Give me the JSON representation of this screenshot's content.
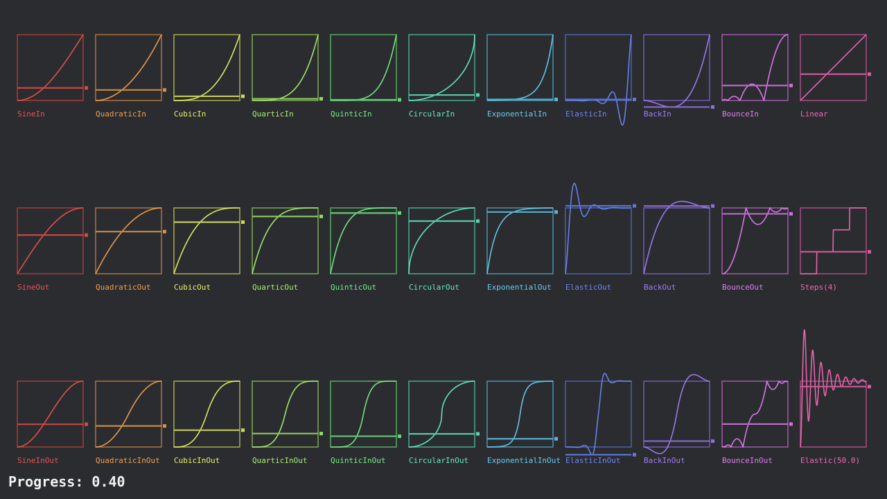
{
  "progress_text": "Progress: 0.40",
  "progress_value": 0.4,
  "rows": [
    {
      "cells": [
        {
          "label": "SineIn",
          "easing": "SineIn",
          "color": "#e8534f"
        },
        {
          "label": "QuadraticIn",
          "easing": "QuadraticIn",
          "color": "#f0a050"
        },
        {
          "label": "CubicIn",
          "easing": "CubicIn",
          "color": "#e6f06a"
        },
        {
          "label": "QuarticIn",
          "easing": "QuarticIn",
          "color": "#a8f070"
        },
        {
          "label": "QuinticIn",
          "easing": "QuinticIn",
          "color": "#74ee86"
        },
        {
          "label": "CircularIn",
          "easing": "CircularIn",
          "color": "#66ecc6"
        },
        {
          "label": "ExponentialIn",
          "easing": "ExponentialIn",
          "color": "#66ccf0"
        },
        {
          "label": "ElasticIn",
          "easing": "ElasticIn",
          "color": "#6a86f4"
        },
        {
          "label": "BackIn",
          "easing": "BackIn",
          "color": "#a07cf6"
        },
        {
          "label": "BounceIn",
          "easing": "BounceIn",
          "color": "#e07cf0"
        },
        {
          "label": "Linear",
          "easing": "Linear",
          "color": "#f068b4"
        }
      ]
    },
    {
      "cells": [
        {
          "label": "SineOut",
          "easing": "SineOut",
          "color": "#e8534f"
        },
        {
          "label": "QuadraticOut",
          "easing": "QuadraticOut",
          "color": "#f0a050"
        },
        {
          "label": "CubicOut",
          "easing": "CubicOut",
          "color": "#e6f06a"
        },
        {
          "label": "QuarticOut",
          "easing": "QuarticOut",
          "color": "#a8f070"
        },
        {
          "label": "QuinticOut",
          "easing": "QuinticOut",
          "color": "#74ee86"
        },
        {
          "label": "CircularOut",
          "easing": "CircularOut",
          "color": "#66ecc6"
        },
        {
          "label": "ExponentialOut",
          "easing": "ExponentialOut",
          "color": "#66ccf0"
        },
        {
          "label": "ElasticOut",
          "easing": "ElasticOut",
          "color": "#6a86f4"
        },
        {
          "label": "BackOut",
          "easing": "BackOut",
          "color": "#a07cf6"
        },
        {
          "label": "BounceOut",
          "easing": "BounceOut",
          "color": "#e07cf0"
        },
        {
          "label": "Steps(4)",
          "easing": "Steps",
          "steps": 4,
          "color": "#f068b4"
        }
      ]
    },
    {
      "cells": [
        {
          "label": "SineInOut",
          "easing": "SineInOut",
          "color": "#e8534f"
        },
        {
          "label": "QuadraticInOut",
          "easing": "QuadraticInOut",
          "color": "#f0a050"
        },
        {
          "label": "CubicInOut",
          "easing": "CubicInOut",
          "color": "#e6f06a"
        },
        {
          "label": "QuarticInOut",
          "easing": "QuarticInOut",
          "color": "#a8f070"
        },
        {
          "label": "QuinticInOut",
          "easing": "QuinticInOut",
          "color": "#74ee86"
        },
        {
          "label": "CircularInOut",
          "easing": "CircularInOut",
          "color": "#66ecc6"
        },
        {
          "label": "ExponentialInOut",
          "easing": "ExponentialInOut",
          "color": "#66ccf0"
        },
        {
          "label": "ElasticInOut",
          "easing": "ElasticInOut",
          "color": "#6a86f4"
        },
        {
          "label": "BackInOut",
          "easing": "BackInOut",
          "color": "#a07cf6"
        },
        {
          "label": "BounceInOut",
          "easing": "BounceInOut",
          "color": "#e07cf0"
        },
        {
          "label": "Elastic(50.0)",
          "easing": "Elastic50",
          "color": "#f068b4"
        }
      ]
    }
  ]
}
